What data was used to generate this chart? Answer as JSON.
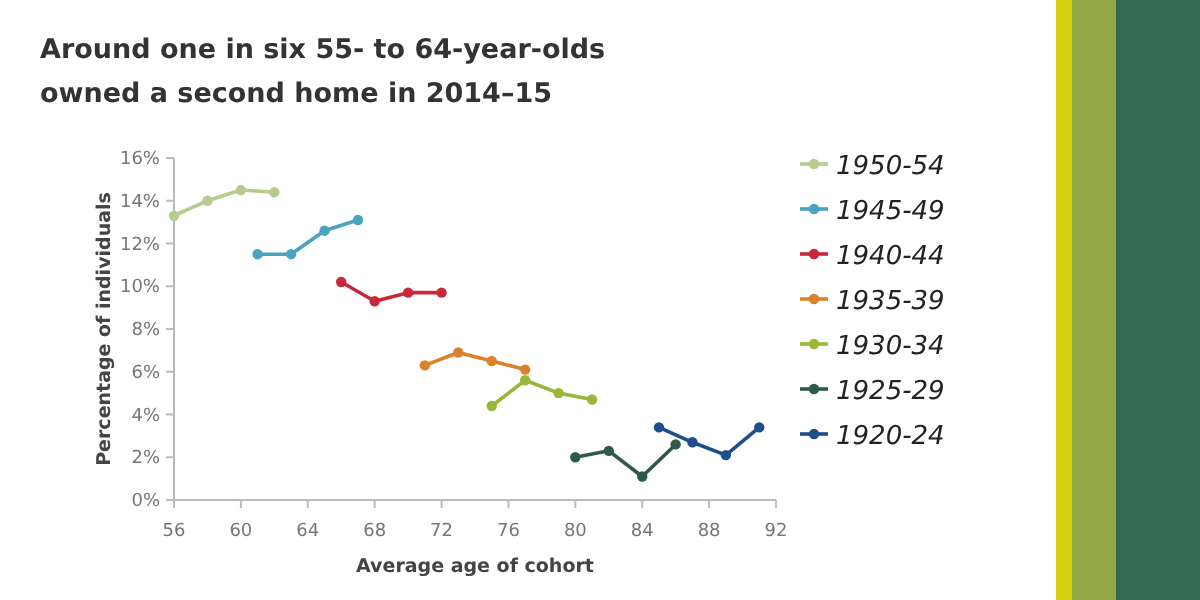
{
  "chart_data": {
    "type": "line",
    "title": "Around one in six 55- to 64-year-olds owned a second home in 2014–15",
    "xlabel": "Average age of cohort",
    "ylabel": "Percentage of individuals",
    "xlim": [
      56,
      92
    ],
    "xticks": [
      56,
      60,
      64,
      68,
      72,
      76,
      80,
      84,
      88,
      92
    ],
    "ylim": [
      0,
      16
    ],
    "yticks": [
      {
        "value": 0,
        "label": "0%"
      },
      {
        "value": 2,
        "label": "2%"
      },
      {
        "value": 4,
        "label": "4%"
      },
      {
        "value": 6,
        "label": "6%"
      },
      {
        "value": 8,
        "label": "8%"
      },
      {
        "value": 10,
        "label": "10%"
      },
      {
        "value": 12,
        "label": "12%"
      },
      {
        "value": 14,
        "label": "14%"
      },
      {
        "value": 16,
        "label": "16%"
      }
    ],
    "grid": false,
    "legend": "right",
    "marker": "circle",
    "line_style": "solid",
    "series": [
      {
        "name": "1950-54",
        "color": "#b5cc8e",
        "x": [
          56,
          58,
          60,
          62
        ],
        "values": [
          13.3,
          14.0,
          14.5,
          14.4
        ]
      },
      {
        "name": "1945-49",
        "color": "#4aa3c0",
        "x": [
          61,
          63,
          65,
          67
        ],
        "values": [
          11.5,
          11.5,
          12.6,
          13.1
        ]
      },
      {
        "name": "1940-44",
        "color": "#c8283c",
        "x": [
          66,
          68,
          70,
          72
        ],
        "values": [
          10.2,
          9.3,
          9.7,
          9.7
        ]
      },
      {
        "name": "1935-39",
        "color": "#d9822b",
        "x": [
          71,
          73,
          75,
          77
        ],
        "values": [
          6.3,
          6.9,
          6.5,
          6.1
        ]
      },
      {
        "name": "1930-34",
        "color": "#99b83a",
        "x": [
          75,
          77,
          79,
          81
        ],
        "values": [
          4.4,
          5.6,
          5.0,
          4.7
        ]
      },
      {
        "name": "1925-29",
        "color": "#2e5a48",
        "x": [
          80,
          82,
          84,
          86
        ],
        "values": [
          2.0,
          2.3,
          1.1,
          2.6
        ]
      },
      {
        "name": "1920-24",
        "color": "#1f4e8c",
        "x": [
          85,
          87,
          89,
          91
        ],
        "values": [
          3.4,
          2.7,
          2.1,
          3.4
        ]
      }
    ]
  }
}
